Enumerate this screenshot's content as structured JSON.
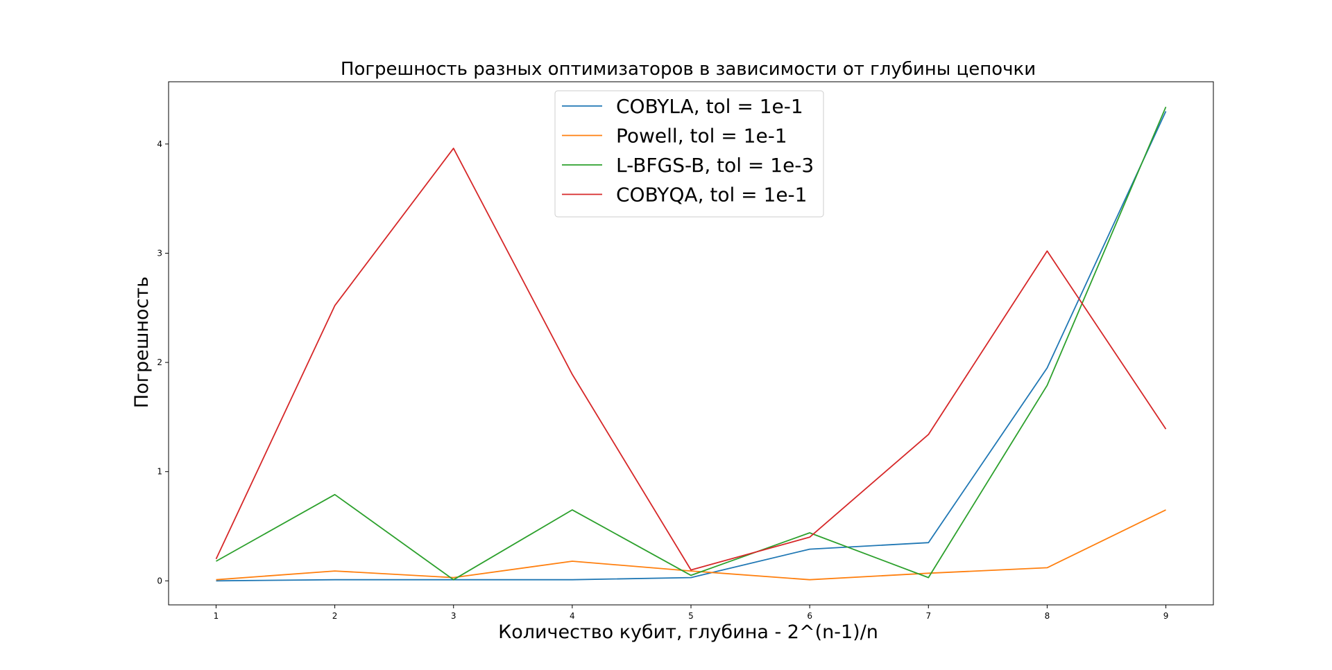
{
  "chart_data": {
    "type": "line",
    "title": "Погрешность разных оптимизаторов в зависимости от глубины цепочки",
    "xlabel": "Количество кубит, глубина - 2^(n-1)/n",
    "ylabel": "Погрешность",
    "x": [
      1,
      2,
      3,
      4,
      5,
      6,
      7,
      8,
      9
    ],
    "xticks": [
      "1",
      "2",
      "3",
      "4",
      "5",
      "6",
      "7",
      "8",
      "9"
    ],
    "yticks": [
      "0",
      "1",
      "2",
      "3",
      "4"
    ],
    "ylim": [
      -0.22,
      4.57
    ],
    "grid": false,
    "legend_position": "top-center",
    "series": [
      {
        "name": "COBYLA, tol = 1e-1",
        "color": "#1f77b4",
        "values": [
          0.0,
          0.01,
          0.01,
          0.01,
          0.03,
          0.29,
          0.35,
          1.95,
          4.3
        ]
      },
      {
        "name": "Powell, tol = 1e-1",
        "color": "#ff7f0e",
        "values": [
          0.01,
          0.09,
          0.03,
          0.18,
          0.09,
          0.01,
          0.07,
          0.12,
          0.65
        ]
      },
      {
        "name": "L-BFGS-B, tol = 1e-3",
        "color": "#2ca02c",
        "values": [
          0.18,
          0.79,
          0.01,
          0.65,
          0.05,
          0.44,
          0.03,
          1.79,
          4.34
        ]
      },
      {
        "name": "COBYQA, tol = 1e-1",
        "color": "#d62728",
        "values": [
          0.2,
          2.52,
          3.96,
          1.89,
          0.1,
          0.4,
          1.34,
          3.02,
          1.39
        ]
      }
    ]
  }
}
